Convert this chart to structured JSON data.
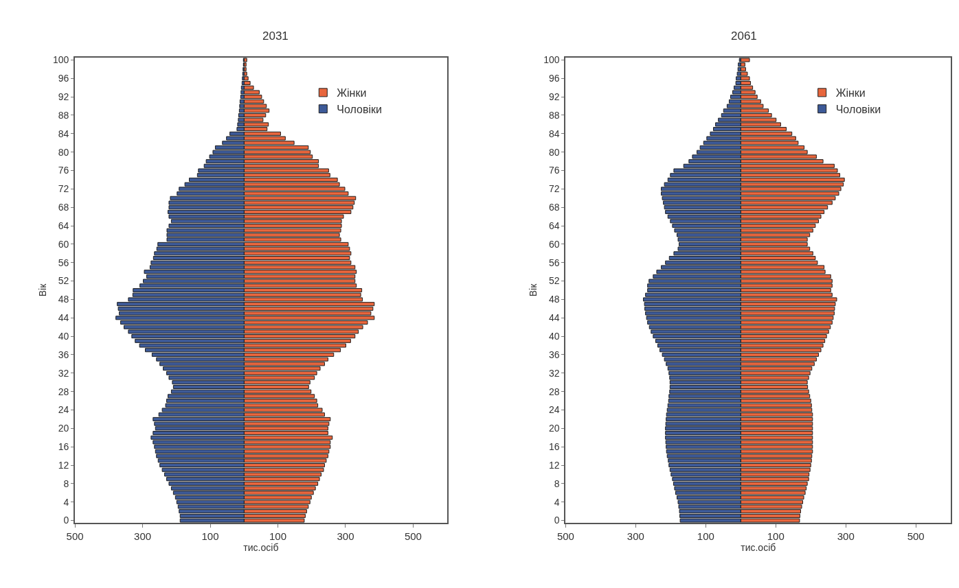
{
  "chart_data": [
    {
      "type": "bar",
      "orientation": "horizontal",
      "stacked": true,
      "title": "2031",
      "xlabel": "тис.осіб",
      "ylabel": "Вік",
      "legend": "top right",
      "categories": [
        "100",
        null,
        null,
        null,
        "96",
        null,
        null,
        null,
        "92",
        null,
        null,
        null,
        "88",
        null,
        null,
        null,
        "84",
        null,
        null,
        null,
        "80",
        null,
        null,
        null,
        "76",
        null,
        null,
        null,
        "72",
        null,
        null,
        null,
        "68",
        null,
        null,
        null,
        "64",
        null,
        null,
        null,
        "60",
        null,
        null,
        null,
        "56",
        null,
        null,
        null,
        "52",
        null,
        null,
        null,
        "48",
        null,
        null,
        null,
        "44",
        null,
        null,
        null,
        "40",
        null,
        null,
        null,
        "36",
        null,
        null,
        null,
        "32",
        null,
        null,
        null,
        "28",
        null,
        null,
        null,
        "24",
        null,
        null,
        null,
        "20",
        null,
        null,
        null,
        "16",
        null,
        null,
        null,
        "12",
        null,
        null,
        null,
        "8",
        null,
        null,
        null,
        "4",
        null,
        null,
        null,
        "0"
      ],
      "xlim": [
        -500,
        600
      ],
      "xticks": [
        {
          "value": -500,
          "label": "500"
        },
        {
          "value": -300,
          "label": "300"
        },
        {
          "value": -100,
          "label": "100"
        },
        100,
        300,
        500
      ],
      "series": [
        {
          "name": "Жінки",
          "color": "#e8663d",
          "values": [
            8,
            6,
            6,
            8,
            12,
            18,
            28,
            45,
            52,
            58,
            66,
            74,
            64,
            56,
            72,
            68,
            108,
            122,
            148,
            190,
            196,
            202,
            220,
            220,
            250,
            254,
            276,
            282,
            298,
            308,
            330,
            326,
            322,
            316,
            294,
            288,
            288,
            286,
            282,
            286,
            308,
            312,
            316,
            312,
            316,
            328,
            332,
            328,
            328,
            332,
            348,
            345,
            350,
            385,
            381,
            375,
            385,
            365,
            351,
            338,
            328,
            315,
            301,
            285,
            265,
            248,
            238,
            225,
            215,
            208,
            195,
            191,
            198,
            208,
            215,
            218,
            231,
            238,
            255,
            251,
            248,
            248,
            261,
            255,
            255,
            251,
            248,
            243,
            238,
            235,
            228,
            223,
            218,
            211,
            205,
            199,
            195,
            190,
            185,
            181,
            178
          ]
        },
        {
          "name": "Чоловіки",
          "color": "#3d5a98",
          "values": [
            -2,
            -2,
            -3,
            -4,
            -5,
            -6,
            -8,
            -9,
            -10,
            -12,
            -13,
            -14,
            -16,
            -17,
            -19,
            -21,
            -42,
            -52,
            -64,
            -85,
            -92,
            -102,
            -112,
            -118,
            -135,
            -138,
            -162,
            -175,
            -192,
            -198,
            -218,
            -222,
            -222,
            -225,
            -222,
            -215,
            -222,
            -228,
            -228,
            -228,
            -255,
            -258,
            -265,
            -268,
            -275,
            -278,
            -295,
            -288,
            -298,
            -308,
            -328,
            -329,
            -342,
            -375,
            -372,
            -369,
            -379,
            -365,
            -355,
            -342,
            -332,
            -322,
            -309,
            -292,
            -272,
            -259,
            -249,
            -239,
            -229,
            -222,
            -212,
            -209,
            -215,
            -225,
            -229,
            -232,
            -242,
            -252,
            -269,
            -265,
            -262,
            -269,
            -275,
            -269,
            -265,
            -262,
            -259,
            -254,
            -249,
            -242,
            -235,
            -229,
            -222,
            -215,
            -209,
            -203,
            -199,
            -195,
            -192,
            -189,
            -189
          ]
        }
      ]
    },
    {
      "type": "bar",
      "orientation": "horizontal",
      "stacked": true,
      "title": "2061",
      "xlabel": "тис.осіб",
      "ylabel": "Вік",
      "legend": "top right",
      "categories": [
        "100",
        null,
        null,
        null,
        "96",
        null,
        null,
        null,
        "92",
        null,
        null,
        null,
        "88",
        null,
        null,
        null,
        "84",
        null,
        null,
        null,
        "80",
        null,
        null,
        null,
        "76",
        null,
        null,
        null,
        "72",
        null,
        null,
        null,
        "68",
        null,
        null,
        null,
        "64",
        null,
        null,
        null,
        "60",
        null,
        null,
        null,
        "56",
        null,
        null,
        null,
        "52",
        null,
        null,
        null,
        "48",
        null,
        null,
        null,
        "44",
        null,
        null,
        null,
        "40",
        null,
        null,
        null,
        "36",
        null,
        null,
        null,
        "32",
        null,
        null,
        null,
        "28",
        null,
        null,
        null,
        "24",
        null,
        null,
        null,
        "20",
        null,
        null,
        null,
        "16",
        null,
        null,
        null,
        "12",
        null,
        null,
        null,
        "8",
        null,
        null,
        null,
        "4",
        null,
        null,
        null,
        "0"
      ],
      "xlim": [
        -500,
        600
      ],
      "xticks": [
        {
          "value": -500,
          "label": "500"
        },
        {
          "value": -300,
          "label": "300"
        },
        {
          "value": -100,
          "label": "100"
        },
        100,
        300,
        500
      ],
      "series": [
        {
          "name": "Жінки",
          "color": "#e8663d",
          "values": [
            25,
            12,
            14,
            19,
            25,
            28,
            34,
            41,
            47,
            57,
            64,
            79,
            88,
            101,
            114,
            130,
            146,
            157,
            164,
            181,
            190,
            216,
            235,
            267,
            276,
            283,
            296,
            293,
            286,
            280,
            270,
            261,
            248,
            238,
            229,
            222,
            213,
            206,
            197,
            190,
            190,
            197,
            206,
            213,
            219,
            238,
            241,
            257,
            261,
            261,
            257,
            261,
            274,
            270,
            268,
            267,
            264,
            261,
            256,
            251,
            245,
            240,
            235,
            229,
            222,
            216,
            210,
            203,
            198,
            194,
            190,
            191,
            194,
            197,
            200,
            202,
            203,
            205,
            205,
            205,
            205,
            205,
            205,
            205,
            205,
            205,
            203,
            202,
            200,
            198,
            195,
            194,
            190,
            187,
            184,
            180,
            177,
            174,
            171,
            169,
            168
          ]
        },
        {
          "name": "Чоловіки",
          "color": "#3d5a98",
          "values": [
            -4,
            -7,
            -8,
            -10,
            -13,
            -14,
            -19,
            -23,
            -29,
            -33,
            -39,
            -49,
            -55,
            -64,
            -72,
            -78,
            -87,
            -97,
            -106,
            -116,
            -125,
            -138,
            -148,
            -163,
            -191,
            -201,
            -208,
            -218,
            -227,
            -227,
            -224,
            -221,
            -218,
            -215,
            -208,
            -201,
            -195,
            -189,
            -182,
            -179,
            -176,
            -179,
            -191,
            -204,
            -215,
            -227,
            -240,
            -250,
            -262,
            -266,
            -266,
            -272,
            -278,
            -275,
            -274,
            -272,
            -269,
            -266,
            -261,
            -256,
            -250,
            -243,
            -237,
            -231,
            -224,
            -218,
            -213,
            -208,
            -205,
            -203,
            -202,
            -202,
            -203,
            -205,
            -206,
            -208,
            -210,
            -212,
            -213,
            -214,
            -215,
            -215,
            -215,
            -214,
            -213,
            -212,
            -210,
            -207,
            -205,
            -202,
            -199,
            -195,
            -192,
            -189,
            -186,
            -182,
            -179,
            -177,
            -175,
            -174,
            -173
          ]
        }
      ]
    }
  ]
}
